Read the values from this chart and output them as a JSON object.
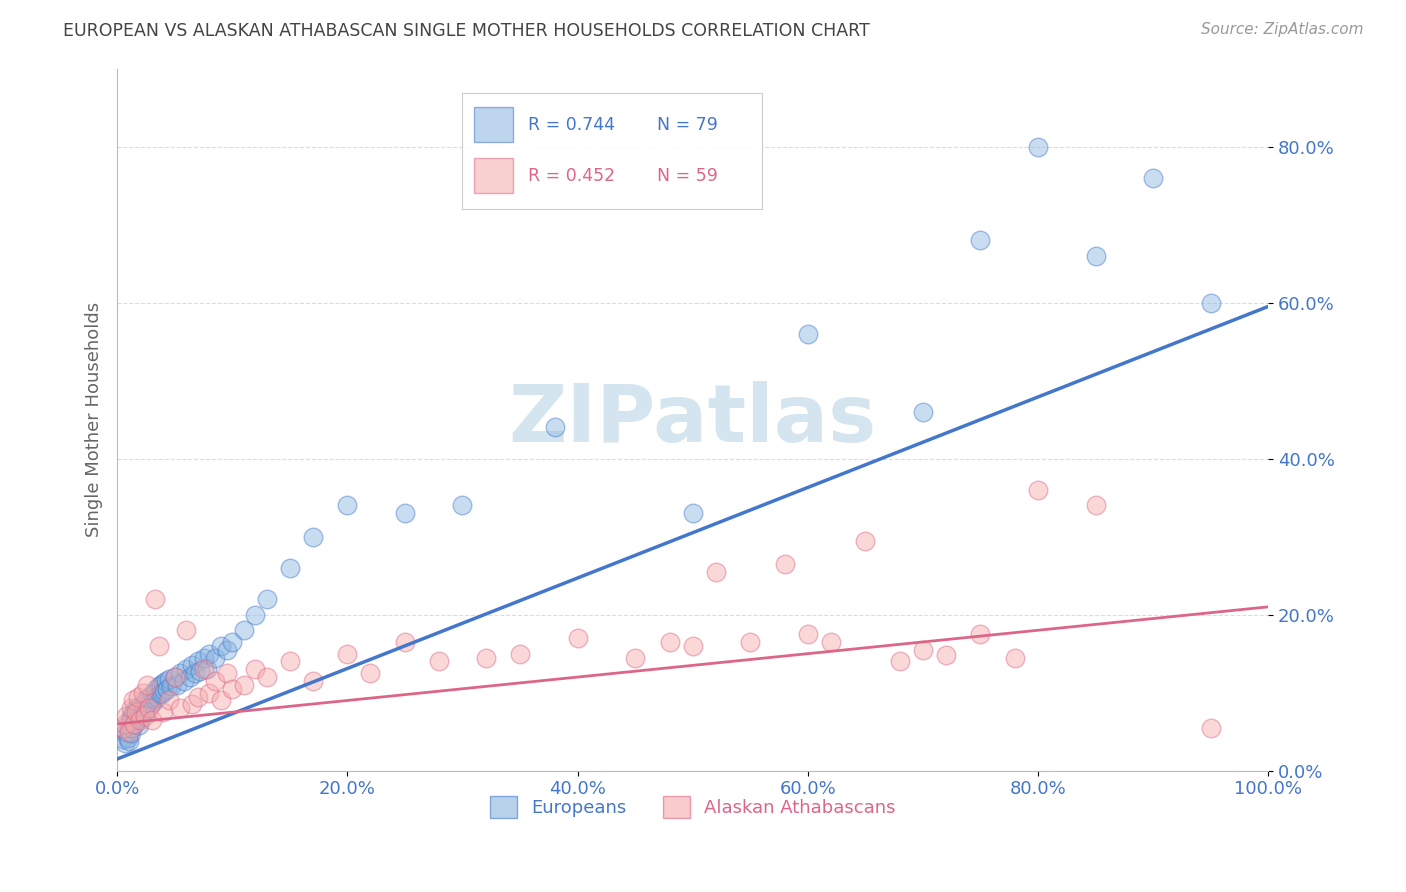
{
  "title": "EUROPEAN VS ALASKAN ATHABASCAN SINGLE MOTHER HOUSEHOLDS CORRELATION CHART",
  "source": "Source: ZipAtlas.com",
  "ylabel": "Single Mother Households",
  "xlim": [
    0.0,
    1.0
  ],
  "ylim": [
    0.0,
    0.9
  ],
  "yticks": [
    0.0,
    0.2,
    0.4,
    0.6,
    0.8
  ],
  "xticks": [
    0.0,
    0.2,
    0.4,
    0.6,
    0.8,
    1.0
  ],
  "blue_R": 0.744,
  "blue_N": 79,
  "pink_R": 0.452,
  "pink_N": 59,
  "blue_color": "#89B4E0",
  "pink_color": "#F4AAAA",
  "blue_line_color": "#4477CC",
  "pink_line_color": "#DD6688",
  "watermark_color": "#D5E5F0",
  "blue_x": [
    0.005,
    0.007,
    0.008,
    0.009,
    0.01,
    0.01,
    0.01,
    0.011,
    0.012,
    0.012,
    0.013,
    0.014,
    0.015,
    0.015,
    0.016,
    0.017,
    0.018,
    0.019,
    0.02,
    0.02,
    0.021,
    0.022,
    0.023,
    0.024,
    0.025,
    0.026,
    0.027,
    0.028,
    0.029,
    0.03,
    0.031,
    0.032,
    0.033,
    0.034,
    0.035,
    0.036,
    0.037,
    0.038,
    0.039,
    0.04,
    0.041,
    0.042,
    0.043,
    0.045,
    0.047,
    0.05,
    0.052,
    0.055,
    0.058,
    0.06,
    0.063,
    0.065,
    0.068,
    0.07,
    0.072,
    0.075,
    0.078,
    0.08,
    0.085,
    0.09,
    0.095,
    0.1,
    0.11,
    0.12,
    0.13,
    0.15,
    0.17,
    0.2,
    0.25,
    0.3,
    0.38,
    0.5,
    0.6,
    0.7,
    0.75,
    0.8,
    0.85,
    0.9,
    0.95
  ],
  "blue_y": [
    0.04,
    0.035,
    0.05,
    0.042,
    0.055,
    0.06,
    0.038,
    0.065,
    0.048,
    0.07,
    0.055,
    0.072,
    0.06,
    0.078,
    0.065,
    0.08,
    0.07,
    0.058,
    0.075,
    0.082,
    0.068,
    0.085,
    0.073,
    0.09,
    0.078,
    0.092,
    0.08,
    0.095,
    0.085,
    0.098,
    0.088,
    0.1,
    0.092,
    0.105,
    0.095,
    0.108,
    0.098,
    0.11,
    0.1,
    0.112,
    0.102,
    0.115,
    0.105,
    0.118,
    0.108,
    0.12,
    0.11,
    0.125,
    0.115,
    0.13,
    0.12,
    0.135,
    0.125,
    0.14,
    0.128,
    0.145,
    0.13,
    0.15,
    0.145,
    0.16,
    0.155,
    0.165,
    0.18,
    0.2,
    0.22,
    0.26,
    0.3,
    0.34,
    0.33,
    0.34,
    0.44,
    0.33,
    0.56,
    0.46,
    0.68,
    0.8,
    0.66,
    0.76,
    0.6
  ],
  "pink_x": [
    0.005,
    0.007,
    0.008,
    0.01,
    0.012,
    0.014,
    0.015,
    0.016,
    0.018,
    0.02,
    0.022,
    0.024,
    0.026,
    0.028,
    0.03,
    0.033,
    0.036,
    0.04,
    0.045,
    0.05,
    0.055,
    0.06,
    0.065,
    0.07,
    0.075,
    0.08,
    0.085,
    0.09,
    0.095,
    0.1,
    0.11,
    0.12,
    0.13,
    0.15,
    0.17,
    0.2,
    0.22,
    0.25,
    0.28,
    0.32,
    0.35,
    0.4,
    0.45,
    0.48,
    0.5,
    0.52,
    0.55,
    0.58,
    0.6,
    0.62,
    0.65,
    0.68,
    0.7,
    0.72,
    0.75,
    0.78,
    0.8,
    0.85,
    0.95
  ],
  "pink_y": [
    0.055,
    0.06,
    0.07,
    0.05,
    0.08,
    0.09,
    0.06,
    0.075,
    0.095,
    0.065,
    0.1,
    0.07,
    0.11,
    0.08,
    0.065,
    0.22,
    0.16,
    0.075,
    0.09,
    0.12,
    0.08,
    0.18,
    0.085,
    0.095,
    0.13,
    0.1,
    0.115,
    0.09,
    0.125,
    0.105,
    0.11,
    0.13,
    0.12,
    0.14,
    0.115,
    0.15,
    0.125,
    0.165,
    0.14,
    0.145,
    0.15,
    0.17,
    0.145,
    0.165,
    0.16,
    0.255,
    0.165,
    0.265,
    0.175,
    0.165,
    0.295,
    0.14,
    0.155,
    0.148,
    0.175,
    0.145,
    0.36,
    0.34,
    0.055
  ],
  "blue_line_x": [
    0.0,
    1.0
  ],
  "blue_line_y": [
    0.015,
    0.595
  ],
  "pink_line_x": [
    0.0,
    1.0
  ],
  "pink_line_y": [
    0.06,
    0.21
  ],
  "legend_blue_label": "Europeans",
  "legend_pink_label": "Alaskan Athabascans",
  "bg_color": "#FFFFFF",
  "grid_color": "#DDDDDD",
  "title_color": "#444444",
  "axis_label_color": "#666666"
}
